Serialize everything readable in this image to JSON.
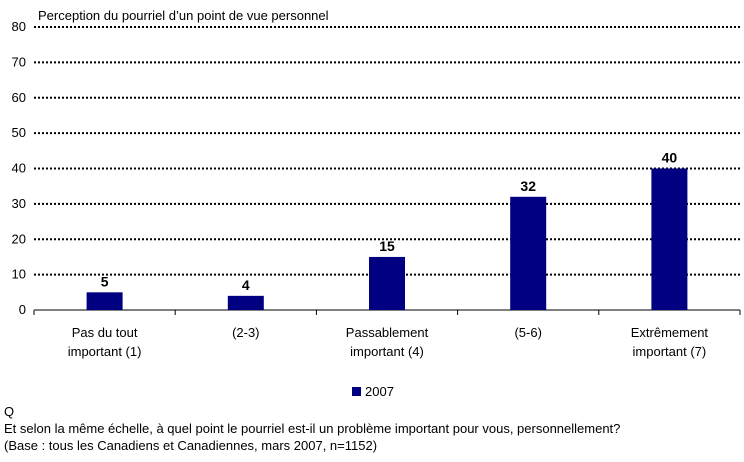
{
  "chart_data": {
    "type": "bar",
    "title": "Perception du pourriel d’un point de vue personnel",
    "categories": [
      [
        "Pas du tout",
        "important (1)"
      ],
      [
        "(2-3)"
      ],
      [
        "Passablement",
        "important (4)"
      ],
      [
        "(5-6)"
      ],
      [
        "Extrêmement",
        "important (7)"
      ]
    ],
    "series": [
      {
        "name": "2007",
        "values": [
          5,
          4,
          15,
          32,
          40
        ],
        "color": "#000080"
      }
    ],
    "ylim": [
      0,
      80
    ],
    "yticks": [
      0,
      10,
      20,
      30,
      40,
      50,
      60,
      70,
      80
    ],
    "grid": "dotted horizontal",
    "legend": "bottom-center"
  },
  "footer": {
    "q_label": "Q",
    "question": "Et selon la même échelle, à quel point le pourriel  est-il un problème important pour vous, personnellement?",
    "base": "(Base : tous les Canadiens et Canadiennes, mars 2007, n=1152)"
  }
}
